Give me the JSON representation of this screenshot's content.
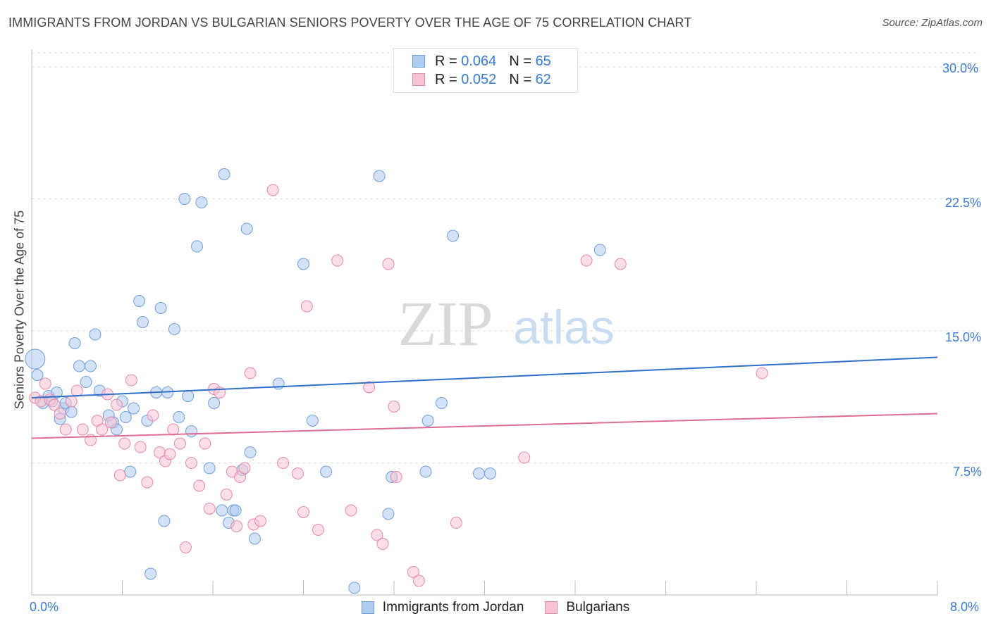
{
  "title": "IMMIGRANTS FROM JORDAN VS BULGARIAN SENIORS POVERTY OVER THE AGE OF 75 CORRELATION CHART",
  "source": "Source: ZipAtlas.com",
  "watermark": {
    "zip": "ZIP",
    "atlas": "atlas"
  },
  "legend": {
    "rows": [
      {
        "r_label": "R =",
        "r_value": "0.064",
        "n_label": "N =",
        "n_value": "65"
      },
      {
        "r_label": "R =",
        "r_value": "0.052",
        "n_label": "N =",
        "n_value": "62"
      }
    ]
  },
  "colors": {
    "jordan_fill": "#aecbf0",
    "jordan_stroke": "#6f9fdc",
    "jordan_line": "#2f6fca",
    "bulgarian_fill": "#f7c3d4",
    "bulgarian_stroke": "#e58aa8",
    "bulgarian_line": "#e06b95",
    "tick_text": "#3a7bd5",
    "grid": "#dddddd"
  },
  "chart_data": {
    "type": "scatter",
    "title": "IMMIGRANTS FROM JORDAN VS BULGARIAN SENIORS POVERTY OVER THE AGE OF 75 CORRELATION CHART",
    "xlabel": "",
    "ylabel": "Seniors Poverty Over the Age of 75",
    "xlim": [
      0,
      8
    ],
    "ylim": [
      0,
      31
    ],
    "x_tick_labels": [
      "0.0%",
      "8.0%"
    ],
    "y_ticks": [
      7.5,
      15.0,
      22.5,
      30.0
    ],
    "y_tick_labels": [
      "7.5%",
      "15.0%",
      "22.5%",
      "30.0%"
    ],
    "series": [
      {
        "name": "Immigrants from Jordan",
        "trend": [
          [
            0,
            11.2
          ],
          [
            8,
            13.5
          ]
        ],
        "points": [
          [
            0.05,
            12.5
          ],
          [
            0.1,
            10.9
          ],
          [
            0.15,
            11.3
          ],
          [
            0.18,
            11.0
          ],
          [
            0.22,
            11.5
          ],
          [
            0.25,
            10.0
          ],
          [
            0.28,
            10.6
          ],
          [
            0.3,
            10.9
          ],
          [
            0.35,
            10.4
          ],
          [
            0.38,
            14.3
          ],
          [
            0.42,
            13.0
          ],
          [
            0.48,
            12.1
          ],
          [
            0.52,
            13.0
          ],
          [
            0.56,
            14.8
          ],
          [
            0.6,
            11.6
          ],
          [
            0.68,
            10.2
          ],
          [
            0.72,
            9.8
          ],
          [
            0.75,
            9.4
          ],
          [
            0.8,
            11.0
          ],
          [
            0.83,
            10.1
          ],
          [
            0.87,
            7.0
          ],
          [
            0.9,
            10.6
          ],
          [
            0.95,
            16.7
          ],
          [
            0.98,
            15.5
          ],
          [
            1.02,
            9.9
          ],
          [
            1.05,
            1.2
          ],
          [
            1.1,
            11.5
          ],
          [
            1.14,
            16.3
          ],
          [
            1.17,
            4.2
          ],
          [
            1.2,
            11.5
          ],
          [
            1.26,
            15.1
          ],
          [
            1.3,
            10.1
          ],
          [
            1.35,
            22.5
          ],
          [
            1.38,
            11.3
          ],
          [
            1.41,
            9.3
          ],
          [
            1.46,
            19.8
          ],
          [
            1.5,
            22.3
          ],
          [
            1.57,
            7.2
          ],
          [
            1.61,
            10.9
          ],
          [
            1.68,
            4.8
          ],
          [
            1.7,
            23.9
          ],
          [
            1.74,
            4.1
          ],
          [
            1.78,
            4.8
          ],
          [
            1.8,
            4.8
          ],
          [
            1.86,
            7.1
          ],
          [
            1.9,
            20.8
          ],
          [
            1.93,
            8.1
          ],
          [
            1.97,
            3.2
          ],
          [
            2.18,
            12.0
          ],
          [
            2.4,
            18.8
          ],
          [
            2.48,
            9.9
          ],
          [
            2.6,
            7.0
          ],
          [
            2.85,
            0.4
          ],
          [
            3.07,
            23.8
          ],
          [
            3.15,
            4.6
          ],
          [
            3.18,
            6.7
          ],
          [
            3.48,
            7.0
          ],
          [
            3.5,
            9.9
          ],
          [
            3.62,
            10.9
          ],
          [
            3.72,
            20.4
          ],
          [
            3.95,
            6.9
          ],
          [
            4.05,
            6.9
          ],
          [
            5.02,
            19.6
          ],
          [
            3.27,
            28.9
          ],
          [
            0.03,
            13.4
          ]
        ]
      },
      {
        "name": "Bulgarians",
        "trend": [
          [
            0,
            8.9
          ],
          [
            8,
            10.3
          ]
        ],
        "points": [
          [
            0.03,
            11.2
          ],
          [
            0.08,
            11.0
          ],
          [
            0.12,
            12.0
          ],
          [
            0.16,
            11.1
          ],
          [
            0.2,
            10.8
          ],
          [
            0.25,
            10.3
          ],
          [
            0.3,
            9.4
          ],
          [
            0.35,
            11.0
          ],
          [
            0.4,
            11.6
          ],
          [
            0.45,
            9.4
          ],
          [
            0.52,
            8.8
          ],
          [
            0.58,
            9.9
          ],
          [
            0.62,
            9.4
          ],
          [
            0.67,
            11.4
          ],
          [
            0.7,
            9.8
          ],
          [
            0.75,
            10.8
          ],
          [
            0.78,
            6.8
          ],
          [
            0.82,
            8.6
          ],
          [
            0.88,
            12.2
          ],
          [
            0.96,
            8.4
          ],
          [
            1.02,
            6.4
          ],
          [
            1.07,
            10.2
          ],
          [
            1.13,
            8.1
          ],
          [
            1.18,
            7.6
          ],
          [
            1.22,
            8.0
          ],
          [
            1.25,
            9.4
          ],
          [
            1.31,
            8.6
          ],
          [
            1.36,
            2.7
          ],
          [
            1.41,
            7.5
          ],
          [
            1.48,
            6.2
          ],
          [
            1.53,
            8.6
          ],
          [
            1.57,
            4.9
          ],
          [
            1.61,
            11.7
          ],
          [
            1.66,
            11.5
          ],
          [
            1.72,
            5.7
          ],
          [
            1.77,
            7.0
          ],
          [
            1.81,
            3.9
          ],
          [
            1.84,
            6.7
          ],
          [
            1.88,
            7.2
          ],
          [
            1.93,
            12.6
          ],
          [
            1.96,
            4.0
          ],
          [
            2.02,
            4.2
          ],
          [
            2.13,
            23.0
          ],
          [
            2.22,
            7.5
          ],
          [
            2.35,
            6.9
          ],
          [
            2.4,
            4.7
          ],
          [
            2.43,
            16.4
          ],
          [
            2.53,
            3.7
          ],
          [
            2.7,
            19.0
          ],
          [
            2.82,
            4.8
          ],
          [
            2.98,
            11.8
          ],
          [
            3.05,
            3.4
          ],
          [
            3.1,
            2.9
          ],
          [
            3.15,
            18.8
          ],
          [
            3.2,
            10.7
          ],
          [
            3.22,
            6.7
          ],
          [
            3.37,
            1.3
          ],
          [
            3.42,
            0.8
          ],
          [
            3.75,
            4.1
          ],
          [
            4.35,
            7.8
          ],
          [
            4.9,
            19.0
          ],
          [
            5.2,
            18.8
          ]
        ]
      }
    ],
    "extra_point": {
      "series": "Bulgarians",
      "x": 6.45,
      "y": 12.6
    }
  },
  "bottom_legend": [
    "Immigrants from Jordan",
    "Bulgarians"
  ]
}
